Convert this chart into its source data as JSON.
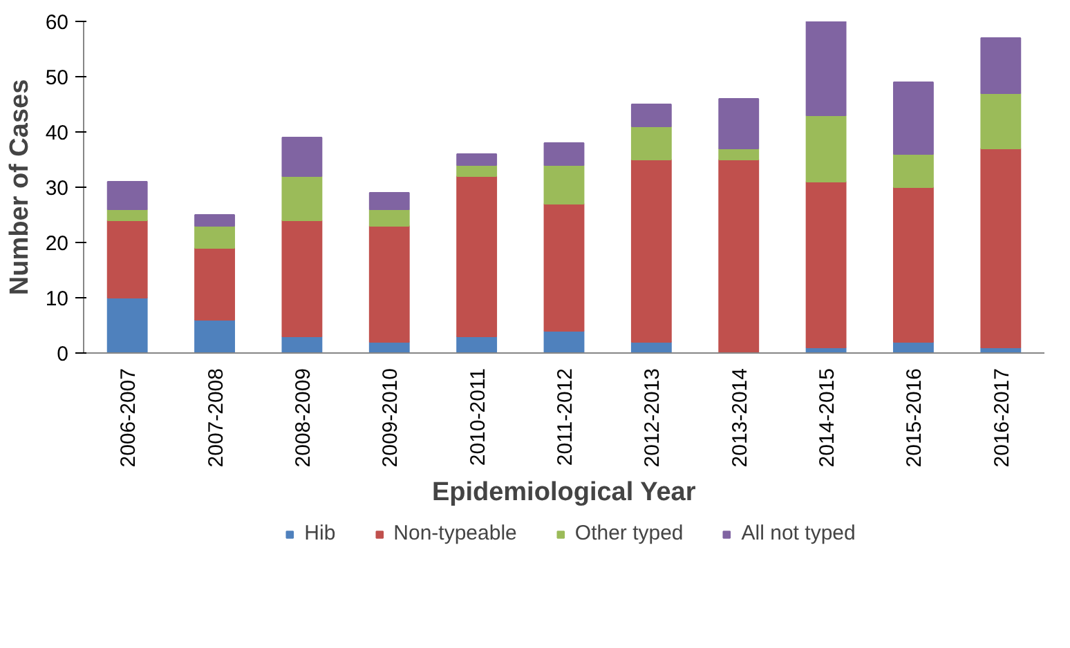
{
  "chart_data": {
    "type": "bar",
    "stacked": true,
    "xlabel": "Epidemiological Year",
    "ylabel": "Number of Cases",
    "categories": [
      "2006-2007",
      "2007-2008",
      "2008-2009",
      "2009-2010",
      "2010-2011",
      "2011-2012",
      "2012-2013",
      "2013-2014",
      "2014-2015",
      "2015-2016",
      "2016-2017"
    ],
    "series": [
      {
        "name": "Hib",
        "color": "#4f81bd",
        "values": [
          10,
          6,
          3,
          2,
          3,
          4,
          2,
          0,
          1,
          2,
          1
        ]
      },
      {
        "name": "Non-typeable",
        "color": "#c0504d",
        "values": [
          14,
          13,
          21,
          21,
          29,
          23,
          33,
          35,
          30,
          28,
          36
        ]
      },
      {
        "name": "Other typed",
        "color": "#9bbb59",
        "values": [
          2,
          4,
          8,
          3,
          2,
          7,
          6,
          2,
          12,
          6,
          10
        ]
      },
      {
        "name": "All not typed",
        "color": "#8064a2",
        "values": [
          5,
          2,
          7,
          3,
          2,
          4,
          4,
          9,
          17,
          13,
          10
        ]
      }
    ],
    "ylim": [
      0,
      60
    ],
    "yticks": [
      0,
      10,
      20,
      30,
      40,
      50,
      60
    ],
    "grid": false,
    "legend": "bottom"
  }
}
